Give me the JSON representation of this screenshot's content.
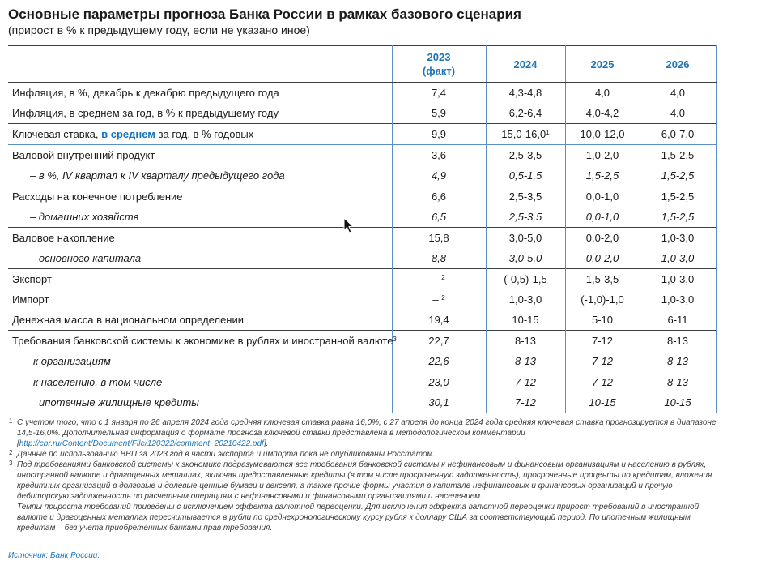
{
  "title": "Основные параметры прогноза Банка России в рамках базового сценария",
  "subtitle": "(прирост в % к предыдущему году, если не указано иное)",
  "headers": {
    "y2023_line1": "2023",
    "y2023_line2": "(факт)",
    "y2024": "2024",
    "y2025": "2025",
    "y2026": "2026"
  },
  "rows": [
    {
      "label": "Инфляция, в %, декабрь к декабрю предыдущего года",
      "v": [
        "7,4",
        "4,3-4,8",
        "4,0",
        "4,0"
      ]
    },
    {
      "label": "Инфляция, в среднем за год, в % к предыдущему году",
      "v": [
        "5,9",
        "6,2-6,4",
        "4,0-4,2",
        "4,0"
      ]
    },
    {
      "label_pre": "Ключевая ставка, ",
      "label_link": "в среднем",
      "label_post": " за год, в % годовых",
      "v": [
        "9,9",
        "15,0-16,0",
        "10,0-12,0",
        "6,0-7,0"
      ],
      "sup_2024": "1"
    },
    {
      "label": "Валовой внутренний продукт",
      "v": [
        "3,6",
        "2,5-3,5",
        "1,0-2,0",
        "1,5-2,5"
      ]
    },
    {
      "label": "– в %, IV квартал к IV кварталу предыдущего года",
      "v": [
        "4,9",
        "0,5-1,5",
        "1,5-2,5",
        "1,5-2,5"
      ]
    },
    {
      "label": "Расходы на конечное потребление",
      "v": [
        "6,6",
        "2,5-3,5",
        "0,0-1,0",
        "1,5-2,5"
      ]
    },
    {
      "label": "– домашних хозяйств",
      "v": [
        "6,5",
        "2,5-3,5",
        "0,0-1,0",
        "1,5-2,5"
      ]
    },
    {
      "label": "Валовое накопление",
      "v": [
        "15,8",
        "3,0-5,0",
        "0,0-2,0",
        "1,0-3,0"
      ]
    },
    {
      "label": "– основного капитала",
      "v": [
        "8,8",
        "3,0-5,0",
        "0,0-2,0",
        "1,0-3,0"
      ]
    },
    {
      "label": "Экспорт",
      "v": [
        "–",
        "(-0,5)-1,5",
        "1,5-3,5",
        "1,0-3,0"
      ],
      "sup_2023": "2"
    },
    {
      "label": "Импорт",
      "v": [
        "–",
        "1,0-3,0",
        "(-1,0)-1,0",
        "1,0-3,0"
      ],
      "sup_2023": "2"
    },
    {
      "label": "Денежная масса в национальном определении",
      "v": [
        "19,4",
        "10-15",
        "5-10",
        "6-11"
      ]
    },
    {
      "label": "Требования банковской системы к экономике в рублях и иностранной валюте",
      "sup_label": "3",
      "v": [
        "22,7",
        "8-13",
        "7-12",
        "8-13"
      ]
    },
    {
      "dash": "–",
      "label": "к организациям",
      "v": [
        "22,6",
        "8-13",
        "7-12",
        "8-13"
      ]
    },
    {
      "dash": "–",
      "label": "к населению, в том числе",
      "v": [
        "23,0",
        "7-12",
        "7-12",
        "8-13"
      ]
    },
    {
      "label": "ипотечные жилищные кредиты",
      "v": [
        "30,1",
        "7-12",
        "10-15",
        "10-15"
      ]
    }
  ],
  "notes": {
    "n1_mark": "1",
    "n1_text": "С учетом того, что с 1 января по 26 апреля 2024 года средняя ключевая ставка равна 16,0%, с 27 апреля до конца 2024 года средняя ключевая ставка прогнозируется в диапазоне 14,5-16,0%. Дополнительная информация о формате прогноза ключевой ставки представлена в методологическом комментарии [",
    "n1_link": "http://cbr.ru/Content/Document/File/120322/comment_20210422.pdf",
    "n1_end": "].",
    "n2_mark": "2",
    "n2_text": "Данные по использованию ВВП за 2023 год в части экспорта и импорта пока не опубликованы Росстатом.",
    "n3_mark": "3",
    "n3_text": "Под требованиями банковской системы к экономике подразумеваются все требования банковской системы к нефинансовым и финансовым организациям и населению в рублях, иностранной валюте и драгоценных металлах, включая предоставленные кредиты (в том числе просроченную задолженность), просроченные проценты по кредитам, вложения кредитных организаций в долговые и долевые ценные бумаги и векселя, а также прочие формы участия в капитале нефинансовых и финансовых организаций и прочую дебиторскую задолженность по расчетным операциям с нефинансовыми и финансовыми организациями и населением.",
    "n4_text": "Темпы прироста требований приведены с исключением эффекта валютной переоценки. Для исключения эффекта валютной переоценки прирост требований в иностранной валюте и драгоценных металлах пересчитывается в рубли по среднехронологическому курсу рубля к доллару США за соответствующий период. По ипотечным жилищным кредитам – без учета приобретенных банками прав требования."
  },
  "source": "Источник: Банк России.",
  "icons": {
    "cursor": "mouse-pointer-icon"
  },
  "colors": {
    "accent": "#1c74b9",
    "rule_dark": "#3d4043",
    "rule_blue": "#5b8ec9"
  }
}
